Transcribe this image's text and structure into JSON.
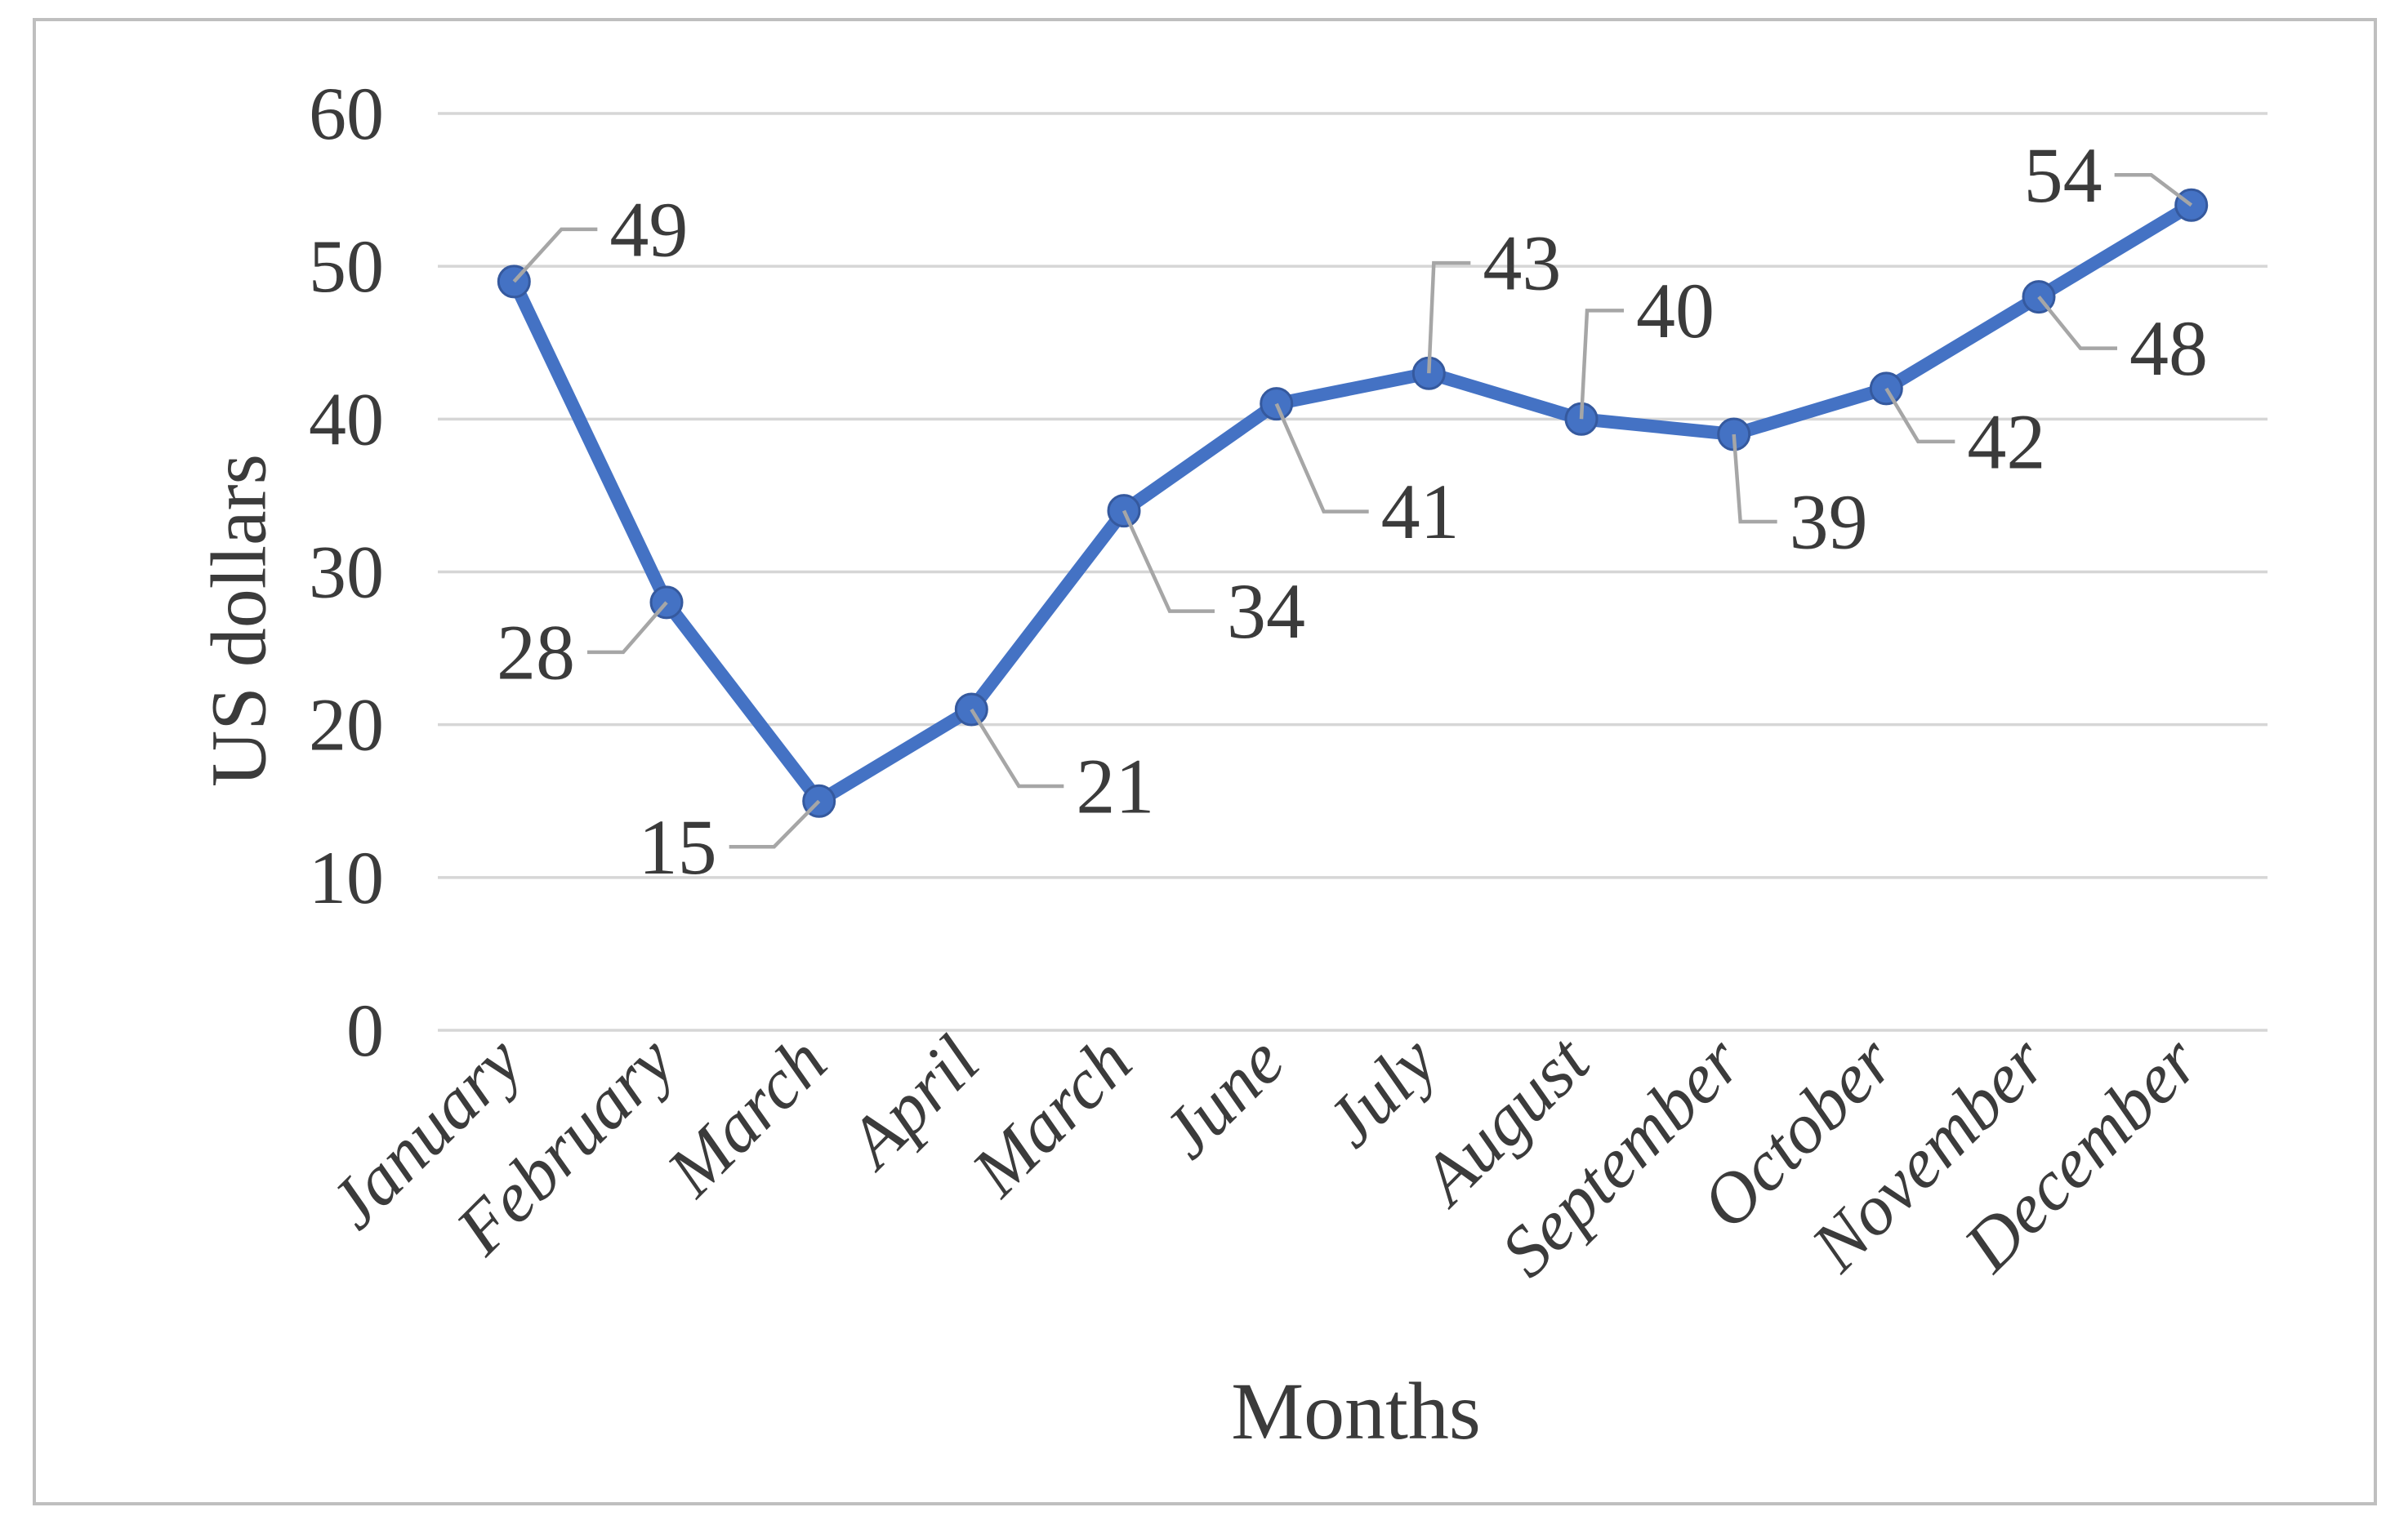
{
  "chart_data": {
    "type": "line",
    "title": "",
    "xlabel": "Months",
    "ylabel": "US dollars",
    "categories": [
      "January",
      "February",
      "March",
      "April",
      "March",
      "June",
      "July",
      "August",
      "September",
      "October",
      "November",
      "December"
    ],
    "series": [
      {
        "name": "US dollars",
        "values": [
          49,
          28,
          15,
          21,
          34,
          41,
          43,
          40,
          39,
          42,
          48,
          54
        ]
      }
    ],
    "data_labels": [
      "49",
      "28",
      "15",
      "21",
      "34",
      "41",
      "43",
      "40",
      "39",
      "42",
      "48",
      "54"
    ],
    "y_ticks": [
      "0",
      "10",
      "20",
      "30",
      "40",
      "50",
      "60"
    ],
    "ylim": [
      0,
      60
    ],
    "grid": "horizontal-only",
    "legend_position": "none",
    "marker": "circle",
    "colors": {
      "line": "#4472C4",
      "marker_fill": "#4472C4",
      "marker_stroke": "#35599E",
      "gridline": "#D6D6D6",
      "leader_line": "#A6A6A6",
      "text": "#3B3B3B",
      "frame_border": "#BFBFBF",
      "background": "#FFFFFF"
    }
  }
}
